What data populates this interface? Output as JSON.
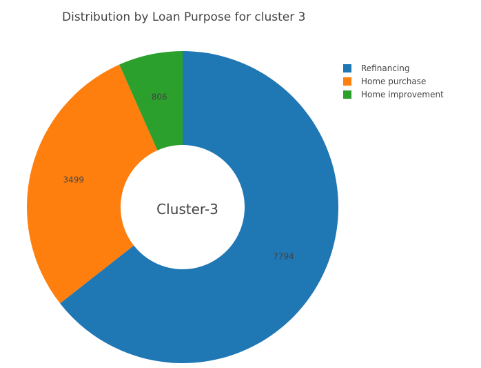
{
  "chart_data": {
    "type": "pie",
    "title": "Distribution by Loan Purpose for cluster 3",
    "hole": true,
    "center_label": "Cluster-3",
    "legend_position": "top-right",
    "slices": [
      {
        "label": "Refinancing",
        "value": 7794,
        "color": "#1f77b4"
      },
      {
        "label": "Home purchase",
        "value": 3499,
        "color": "#ff7f0e"
      },
      {
        "label": "Home improvement",
        "value": 806,
        "color": "#2ca02c"
      }
    ]
  }
}
